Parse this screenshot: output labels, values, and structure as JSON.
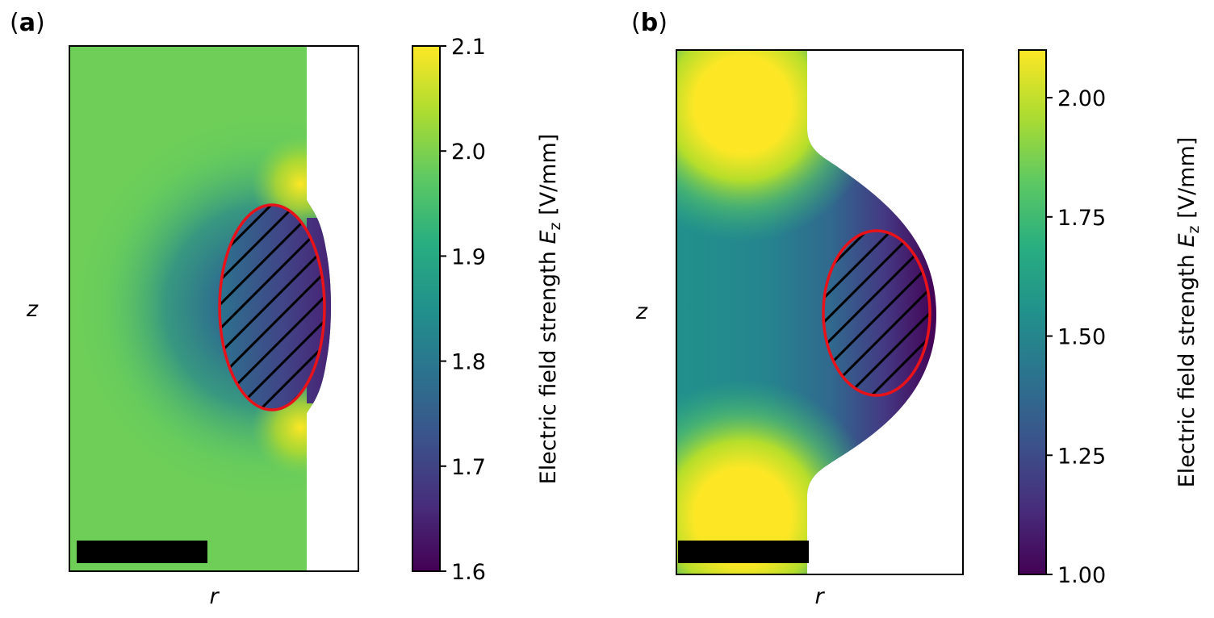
{
  "chart_data": [
    {
      "type": "heatmap",
      "panel_label": "a",
      "xlabel": "r",
      "ylabel": "z",
      "colorbar": {
        "title_prefix": "Electric field strength ",
        "title_var": "E",
        "title_sub": "z",
        "title_unit": " [V/mm]",
        "range": [
          1.6,
          2.1
        ],
        "ticks": [
          2.1,
          2.0,
          1.9,
          1.8,
          1.7,
          1.6
        ],
        "tick_labels": [
          "2.1",
          "2.0",
          "1.9",
          "1.8",
          "1.7",
          "1.6"
        ]
      },
      "field": {
        "background": 1.97,
        "inclusion_min": 1.6,
        "hotspot_max": 2.1
      },
      "inclusion": {
        "shape": "ellipse",
        "outline_color": "#e8121a",
        "hatched": true
      },
      "scale_bar": true
    },
    {
      "type": "heatmap",
      "panel_label": "b",
      "xlabel": "r",
      "ylabel": "z",
      "colorbar": {
        "title_prefix": "Electric field strength ",
        "title_var": "E",
        "title_sub": "z",
        "title_unit": " [V/mm]",
        "range": [
          1.0,
          2.1
        ],
        "ticks": [
          2.0,
          1.75,
          1.5,
          1.25,
          1.0
        ],
        "tick_labels": [
          "2.00",
          "1.75",
          "1.50",
          "1.25",
          "1.00"
        ]
      },
      "field": {
        "background": 2.08,
        "inclusion_min": 1.0,
        "axis_value": 1.55
      },
      "inclusion": {
        "shape": "ellipse",
        "outline_color": "#e8121a",
        "hatched": true
      },
      "scale_bar": true
    }
  ],
  "colormap": "viridis",
  "colors": {
    "inclusion_outline": "#e8121a",
    "hatch": "#000000",
    "scale_bar": "#000000"
  }
}
